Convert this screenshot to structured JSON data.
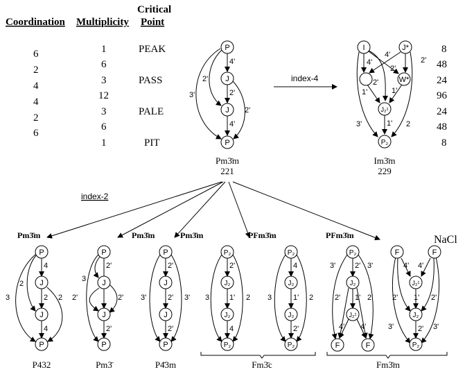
{
  "table": {
    "headers": {
      "coordination": "Coordination",
      "multiplicity": "Multiplicity",
      "critical_top": "Critical",
      "critical_bottom": "Point"
    },
    "coordination": [
      "6",
      "2",
      "4",
      "4",
      "2",
      "6"
    ],
    "multiplicity": [
      "1",
      "6",
      "3",
      "12",
      "3",
      "6",
      "1"
    ],
    "critical_points": [
      "PEAK",
      "PASS",
      "PALE",
      "PIT"
    ]
  },
  "index4_label": "index-4",
  "index2_label": "index-2",
  "pm3m": {
    "nodes": [
      "P",
      "J",
      "J",
      "P"
    ],
    "edges": [
      "4'",
      "2'",
      "4'",
      "3'",
      "2'",
      "2'"
    ],
    "name": "Pm3̄m",
    "number": "221"
  },
  "im3m": {
    "nodes": [
      "I",
      "J*",
      "J₂¹",
      "W*",
      "P₂"
    ],
    "edges": [
      "4'",
      "4'",
      "2'",
      "2'",
      "2'",
      "1'",
      "1'",
      "1'",
      "3'",
      "2"
    ],
    "multiplicities": [
      "8",
      "48",
      "24",
      "96",
      "24",
      "48",
      "8"
    ],
    "name": "Im3̄m",
    "number": "229"
  },
  "subgroups": [
    {
      "top_label": "Pm3̄m",
      "nodes": [
        "P",
        "J",
        "J",
        "P"
      ],
      "edges": [
        "4",
        "2",
        "4",
        "2",
        "3",
        "2"
      ],
      "name": "P432"
    },
    {
      "top_label": "Pm3̄m",
      "nodes": [
        "P",
        "J",
        "J",
        "P"
      ],
      "edges": [
        "2'",
        "3",
        "2'",
        "2'",
        "2'"
      ],
      "name": "Pm3̄"
    },
    {
      "top_label": "Pm3̄m",
      "nodes": [
        "P",
        "J",
        "J",
        "P"
      ],
      "edges": [
        "2'",
        "2'",
        "2'",
        "3'",
        "3'"
      ],
      "name": "P4̄3m"
    },
    {
      "top_label": "PFm3̄m",
      "nodes": [
        "P₂",
        "J₂",
        "J₂",
        "P₂",
        "P₂",
        "J₂",
        "J₂",
        "P₂"
      ],
      "edges": [
        "2'",
        "1'",
        "4",
        "3",
        "2",
        "4",
        "1'",
        "2'",
        "3",
        "2"
      ],
      "name": "Fm3̄c"
    },
    {
      "top_label": "PFm3̄m",
      "nodes": [
        "P₂",
        "J₂",
        "J₂¹",
        "F",
        "F",
        "F",
        "F",
        "J₂¹",
        "J₂",
        "P₂"
      ],
      "edges": [
        "3'",
        "2'",
        "3'",
        "2'",
        "1'",
        "2'",
        "4'",
        "4'",
        "4'",
        "4'",
        "2'",
        "1'",
        "2'",
        "2'",
        "3'",
        "3'"
      ],
      "name": "Fm3̄m",
      "extra_label": "NaCl"
    }
  ]
}
